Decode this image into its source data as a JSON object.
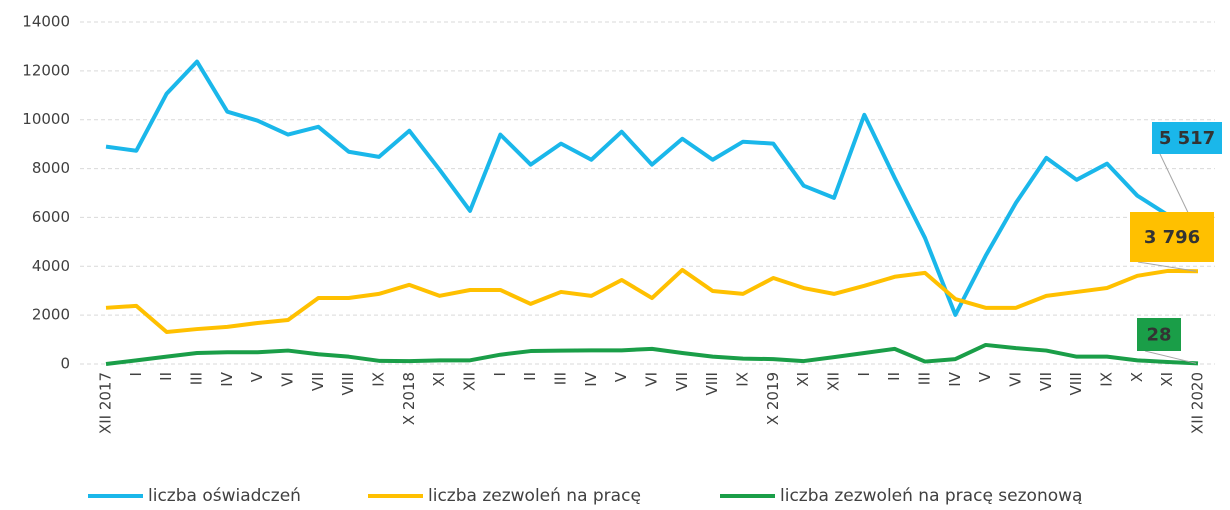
{
  "chart_data": {
    "type": "line",
    "categories": [
      "XII 2017",
      "I",
      "II",
      "III",
      "IV",
      "V",
      "VI",
      "VII",
      "VIII",
      "IX",
      "X 2018",
      "XI",
      "XII",
      "I",
      "II",
      "III",
      "IV",
      "V",
      "VI",
      "VII",
      "VIII",
      "IX",
      "X 2019",
      "XI",
      "XII",
      "I",
      "II",
      "III",
      "IV",
      "V",
      "VI",
      "VII",
      "VIII",
      "IX",
      "X",
      "XI",
      "XII 2020"
    ],
    "series": [
      {
        "name": "liczba oświadczeń",
        "color": "#1ab7ea",
        "values": [
          8900,
          8730,
          11070,
          12380,
          10330,
          9960,
          9390,
          9710,
          8690,
          8480,
          9550,
          7950,
          6270,
          9390,
          8160,
          9020,
          8360,
          9510,
          8160,
          9220,
          8360,
          9100,
          9020,
          7300,
          6800,
          10200,
          7620,
          5160,
          2010,
          4430,
          6600,
          8440,
          7540,
          8200,
          6890,
          6100,
          5517
        ],
        "value_labels": [
          null,
          null,
          null,
          null,
          null,
          null,
          null,
          null,
          null,
          null,
          null,
          null,
          null,
          null,
          null,
          null,
          null,
          null,
          null,
          null,
          null,
          null,
          null,
          null,
          null,
          null,
          null,
          null,
          null,
          null,
          null,
          null,
          null,
          null,
          null,
          null,
          "5 517"
        ]
      },
      {
        "name": "liczba zezwoleń na pracę",
        "color": "#ffc000",
        "values": [
          2300,
          2380,
          1310,
          1430,
          1520,
          1680,
          1800,
          2700,
          2700,
          2870,
          3240,
          2790,
          3030,
          3030,
          2460,
          2950,
          2790,
          3440,
          2700,
          3850,
          2990,
          2870,
          3520,
          3110,
          2870,
          3200,
          3570,
          3730,
          2660,
          2300,
          2300,
          2790,
          2950,
          3110,
          3610,
          3810,
          3796
        ],
        "value_labels": [
          null,
          null,
          null,
          null,
          null,
          null,
          null,
          null,
          null,
          null,
          null,
          null,
          null,
          null,
          null,
          null,
          null,
          null,
          null,
          null,
          null,
          null,
          null,
          null,
          null,
          null,
          null,
          null,
          null,
          null,
          null,
          null,
          null,
          null,
          null,
          null,
          "3 796"
        ]
      },
      {
        "name": "liczba zezwoleń na pracę sezonową",
        "color": "#1a9e48",
        "values": [
          0,
          150,
          300,
          450,
          480,
          480,
          550,
          400,
          300,
          130,
          120,
          150,
          150,
          380,
          530,
          550,
          560,
          560,
          620,
          450,
          300,
          220,
          200,
          120,
          280,
          450,
          620,
          100,
          200,
          780,
          650,
          550,
          300,
          300,
          150,
          80,
          28
        ],
        "value_labels": [
          null,
          null,
          null,
          null,
          null,
          null,
          null,
          null,
          null,
          null,
          null,
          null,
          null,
          null,
          null,
          null,
          null,
          null,
          null,
          null,
          null,
          null,
          null,
          null,
          null,
          null,
          null,
          null,
          null,
          null,
          null,
          null,
          null,
          null,
          null,
          null,
          "28"
        ]
      }
    ],
    "ylim": [
      0,
      14000
    ],
    "yticks": [
      0,
      2000,
      4000,
      6000,
      8000,
      10000,
      12000,
      14000
    ],
    "grid": true,
    "legend": "bottom"
  }
}
